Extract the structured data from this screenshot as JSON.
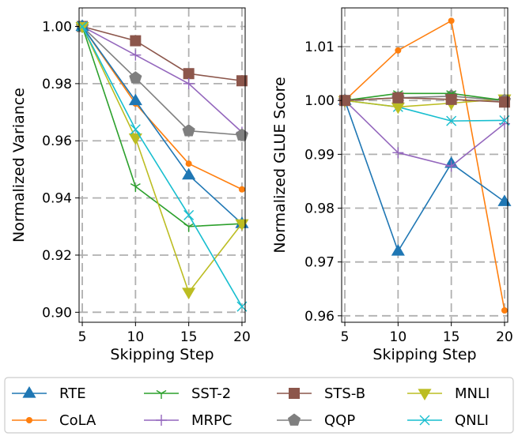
{
  "colors": {
    "RTE": "#1f77b4",
    "CoLA": "#ff7f0e",
    "SST-2": "#2ca02c",
    "STS-B": "#8c564b",
    "MNLI": "#bcbd22",
    "MRPC": "#9467bd",
    "QQP": "#7f7f7f",
    "QNLI": "#17becf"
  },
  "legend": {
    "entries": [
      {
        "name": "RTE",
        "marker": "triangle-up"
      },
      {
        "name": "CoLA",
        "marker": "circle"
      },
      {
        "name": "SST-2",
        "marker": "tri-down"
      },
      {
        "name": "MRPC",
        "marker": "plus"
      },
      {
        "name": "STS-B",
        "marker": "square"
      },
      {
        "name": "QQP",
        "marker": "pentagon"
      },
      {
        "name": "MNLI",
        "marker": "triangle-down"
      },
      {
        "name": "QNLI",
        "marker": "x"
      }
    ]
  },
  "chart_data": [
    {
      "type": "line",
      "xlabel": "Skipping Step",
      "ylabel": "Normalized Variance",
      "x": [
        5,
        10,
        15,
        20
      ],
      "xticks": [
        "5",
        "10",
        "15",
        "20"
      ],
      "xlim": [
        4.7,
        20.3
      ],
      "ylim": [
        0.8965,
        1.0065
      ],
      "yticks": [
        "0.90",
        "0.92",
        "0.94",
        "0.96",
        "0.98",
        "1.00"
      ],
      "ytick_values": [
        0.9,
        0.92,
        0.94,
        0.96,
        0.98,
        1.0
      ],
      "grid": true,
      "series": [
        {
          "name": "STS-B",
          "values": [
            1.0,
            0.995,
            0.9835,
            0.981
          ]
        },
        {
          "name": "MRPC",
          "values": [
            1.0,
            0.99,
            0.98,
            0.963
          ]
        },
        {
          "name": "QQP",
          "values": [
            1.0,
            0.982,
            0.9635,
            0.962
          ]
        },
        {
          "name": "CoLA",
          "values": [
            1.0,
            0.973,
            0.952,
            0.943
          ]
        },
        {
          "name": "RTE",
          "values": [
            1.0,
            0.974,
            0.948,
            0.931
          ]
        },
        {
          "name": "SST-2",
          "values": [
            1.0,
            0.944,
            0.93,
            0.931
          ]
        },
        {
          "name": "MNLI",
          "values": [
            1.0,
            0.961,
            0.907,
            0.931
          ]
        },
        {
          "name": "QNLI",
          "values": [
            1.0,
            0.964,
            0.934,
            0.902
          ]
        }
      ]
    },
    {
      "type": "line",
      "xlabel": "Skipping Step",
      "ylabel": "Normalized GLUE Score",
      "x": [
        5,
        10,
        15,
        20
      ],
      "xticks": [
        "5",
        "10",
        "15",
        "20"
      ],
      "xlim": [
        4.7,
        20.3
      ],
      "ylim": [
        0.9588,
        1.0172
      ],
      "yticks": [
        "0.96",
        "0.97",
        "0.98",
        "0.99",
        "1.00",
        "1.01"
      ],
      "ytick_values": [
        0.96,
        0.97,
        0.98,
        0.99,
        1.0,
        1.01
      ],
      "grid": true,
      "series": [
        {
          "name": "CoLA",
          "values": [
            1.0,
            1.0093,
            1.0148,
            0.961
          ]
        },
        {
          "name": "RTE",
          "values": [
            1.0,
            0.972,
            0.9883,
            0.9812
          ]
        },
        {
          "name": "MRPC",
          "values": [
            1.0,
            0.9903,
            0.9878,
            0.9957
          ]
        },
        {
          "name": "QNLI",
          "values": [
            1.0,
            0.9988,
            0.9962,
            0.9963
          ]
        },
        {
          "name": "MNLI",
          "values": [
            1.0,
            0.9988,
            0.9995,
            1.0003
          ]
        },
        {
          "name": "QQP",
          "values": [
            1.0,
            1.0005,
            1.0008,
            1.0
          ]
        },
        {
          "name": "SST-2",
          "values": [
            1.0,
            1.0013,
            1.0013,
            1.0
          ]
        },
        {
          "name": "STS-B",
          "values": [
            1.0,
            1.0005,
            1.0002,
            0.9997
          ]
        }
      ]
    }
  ]
}
